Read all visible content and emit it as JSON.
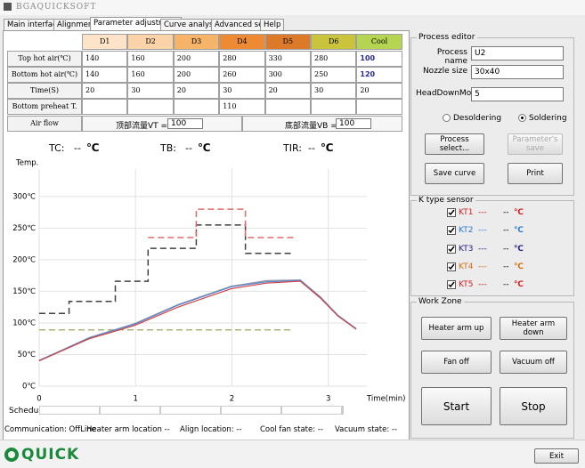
{
  "window": {
    "title": "BGAQUICKSOFT"
  },
  "tabs": [
    "Main interface",
    "Alignment",
    "Parameter adjustment",
    "Curve analysis",
    "Advanced set",
    "Help"
  ],
  "active_tab": 2,
  "table": {
    "columns": [
      {
        "name": "D1",
        "color": "#fde3c8"
      },
      {
        "name": "D2",
        "color": "#fbd3a8"
      },
      {
        "name": "D3",
        "color": "#f6b468"
      },
      {
        "name": "D4",
        "color": "#ee8a34"
      },
      {
        "name": "D5",
        "color": "#dc7a2a"
      },
      {
        "name": "D6",
        "color": "#c9c43c"
      },
      {
        "name": "Cool",
        "color": "#b4d452"
      }
    ],
    "rows": [
      {
        "label": "Top hot air(℃)",
        "values": [
          140,
          160,
          200,
          280,
          330,
          280,
          100
        ]
      },
      {
        "label": "Bottom hot air(℃)",
        "values": [
          140,
          160,
          200,
          260,
          300,
          250,
          120
        ]
      },
      {
        "label": "Time(S)",
        "values": [
          20,
          30,
          20,
          30,
          20,
          30,
          20
        ]
      },
      {
        "label": "Bottom preheat T.(℃)",
        "values": [
          null,
          null,
          null,
          110,
          null,
          null,
          null
        ]
      }
    ],
    "air_flow": {
      "label": "Air flow",
      "vt_label": "顶部流量VT =",
      "vt": 100,
      "vb_label": "底部流量VB =",
      "vb": 100
    }
  },
  "readouts": [
    {
      "label": "TC:",
      "value": "--",
      "unit": "℃"
    },
    {
      "label": "TB:",
      "value": "--",
      "unit": "℃"
    },
    {
      "label": "TIR:",
      "value": "--",
      "unit": "℃"
    }
  ],
  "chart": {
    "type": "line",
    "y_label": "Temp.",
    "x_label": "Time(min)",
    "xlim": [
      0,
      3.4
    ],
    "ylim": [
      0,
      335
    ],
    "xticks": [
      0,
      1,
      2,
      3
    ],
    "yticks": [
      {
        "value": 0,
        "label": "0℃"
      },
      {
        "value": 50,
        "label": "50℃"
      },
      {
        "value": 100,
        "label": "100℃"
      },
      {
        "value": 150,
        "label": "150℃"
      },
      {
        "value": 200,
        "label": "200℃"
      },
      {
        "value": 250,
        "label": "250℃"
      },
      {
        "value": 300,
        "label": "300℃"
      }
    ],
    "grid": true,
    "series": [
      {
        "color": "#404040",
        "dash": true,
        "x": [
          0,
          0.31,
          0.31,
          0.79,
          0.79,
          1.13,
          1.13,
          1.63,
          1.63,
          2.14,
          2.14,
          2.64
        ],
        "values": [
          115,
          115,
          134,
          134,
          166,
          166,
          218,
          218,
          255,
          255,
          210,
          210
        ]
      },
      {
        "color": "#e06a6a",
        "dash": true,
        "x": [
          1.13,
          1.63,
          1.63,
          2.14,
          2.14,
          2.64
        ],
        "values": [
          235,
          235,
          280,
          280,
          235,
          235
        ]
      },
      {
        "color": "#a8b87a",
        "dash": true,
        "x": [
          0,
          2.64
        ],
        "values": [
          89,
          89
        ]
      },
      {
        "color": "#9098a8",
        "dash": false,
        "x": [
          0,
          0.52,
          0.99,
          1.44,
          1.99,
          2.36,
          2.71,
          2.92,
          3.1,
          3.29
        ],
        "values": [
          40,
          77,
          99,
          129,
          158,
          167,
          168,
          141,
          112,
          90
        ]
      },
      {
        "color": "#5a86d0",
        "dash": false,
        "x": [
          0,
          0.52,
          0.99,
          1.44,
          1.99,
          2.36,
          2.71,
          2.92,
          3.1,
          3.29
        ],
        "values": [
          41,
          76,
          98,
          128,
          157,
          165,
          167,
          140,
          112,
          91
        ]
      },
      {
        "color": "#d04444",
        "dash": false,
        "x": [
          0,
          0.52,
          0.99,
          1.44,
          1.99,
          2.36,
          2.71,
          2.92,
          3.1,
          3.29
        ],
        "values": [
          40,
          75,
          96,
          125,
          154,
          163,
          166,
          139,
          111,
          90
        ]
      }
    ]
  },
  "schedule": "Schedule",
  "process_editor": {
    "title": "Process editor",
    "fields": [
      {
        "label": "Process name",
        "value": "U2"
      },
      {
        "label": "Nozzle size",
        "value": "30x40"
      },
      {
        "label": "HeadDownMode",
        "value": "5"
      }
    ],
    "modes": [
      "Desoldering",
      "Soldering"
    ],
    "selected_mode": 1,
    "buttons": [
      "Process select...",
      "Parameter's save",
      "Save curve",
      "Print"
    ]
  },
  "sensor": {
    "title": "K type sensor",
    "items": [
      {
        "name": "KT1",
        "value": "---",
        "reading": "--",
        "unit": "℃",
        "color": "#d02020"
      },
      {
        "name": "KT2",
        "value": "---",
        "reading": "--",
        "unit": "℃",
        "color": "#2a7ad0"
      },
      {
        "name": "KT3",
        "value": "---",
        "reading": "--",
        "unit": "℃",
        "color": "#202080"
      },
      {
        "name": "KT4",
        "value": "---",
        "reading": "--",
        "unit": "℃",
        "color": "#d07010"
      },
      {
        "name": "KT5",
        "value": "---",
        "reading": "--",
        "unit": "℃",
        "color": "#d02020"
      }
    ]
  },
  "work_zone": {
    "title": "Work Zone",
    "buttons": [
      "Heater arm up",
      "Heater arm down",
      "Fan off",
      "Vacuum off",
      "Start",
      "Stop"
    ]
  },
  "status": [
    "Communication: OffLine",
    "Heater arm location --",
    "Align  location: --",
    "Cool fan state: --",
    "Vacuum state: --"
  ],
  "logo": "QUICK",
  "exit": "Exit"
}
